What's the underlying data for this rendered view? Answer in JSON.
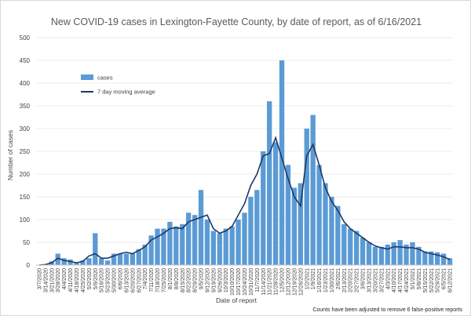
{
  "chart_data": {
    "type": "bar",
    "title": "New COVID-19 cases in Lexington-Fayette County, by date of report, as of 6/16/2021",
    "xlabel": "Date of report",
    "ylabel": "Number of cases",
    "ylim": [
      0,
      500
    ],
    "y_ticks": [
      "0",
      "50",
      "100",
      "150",
      "200",
      "250",
      "300",
      "350",
      "400",
      "450",
      "500"
    ],
    "x_tick_labels": [
      "3/7/2020",
      "3/14/2020",
      "3/21/2020",
      "3/28/2020",
      "4/4/2020",
      "4/11/2020",
      "4/18/2020",
      "4/25/2020",
      "5/2/2020",
      "5/9/2020",
      "5/16/2020",
      "5/23/2020",
      "5/30/2020",
      "6/6/2020",
      "6/13/2020",
      "6/20/2020",
      "6/27/2020",
      "7/4/2020",
      "7/11/2020",
      "7/18/2020",
      "7/25/2020",
      "8/1/2020",
      "8/8/2020",
      "8/15/2020",
      "8/22/2020",
      "8/29/2020",
      "9/5/2020",
      "9/12/2020",
      "9/19/2020",
      "9/26/2020",
      "10/3/2020",
      "10/10/2020",
      "10/17/2020",
      "10/24/2020",
      "10/31/2020",
      "11/7/2020",
      "11/14/2020",
      "11/21/2020",
      "11/28/2020",
      "12/5/2020",
      "12/12/2020",
      "12/19/2020",
      "12/26/2020",
      "1/2/2021",
      "1/9/2021",
      "1/16/2021",
      "1/23/2021",
      "1/30/2021",
      "2/6/2021",
      "2/13/2021",
      "2/20/2021",
      "2/27/2021",
      "3/6/2021",
      "3/13/2021",
      "3/20/2021",
      "3/27/2021",
      "4/3/2021",
      "4/10/2021",
      "4/17/2021",
      "4/24/2021",
      "5/1/2021",
      "5/8/2021",
      "5/15/2021",
      "5/22/2021",
      "5/29/2021",
      "6/5/2021",
      "6/12/2021"
    ],
    "legend": {
      "placement": "upper-left",
      "entries": [
        "cases",
        "7 day moving average"
      ]
    },
    "series": [
      {
        "name": "cases",
        "kind": "bar",
        "color": "#5b9bd5",
        "x": [
          "3/7/2020",
          "3/14/2020",
          "3/21/2020",
          "3/28/2020",
          "4/4/2020",
          "4/11/2020",
          "4/18/2020",
          "4/25/2020",
          "5/2/2020",
          "5/9/2020",
          "5/16/2020",
          "5/23/2020",
          "5/30/2020",
          "6/6/2020",
          "6/13/2020",
          "6/20/2020",
          "6/27/2020",
          "7/4/2020",
          "7/11/2020",
          "7/18/2020",
          "7/25/2020",
          "8/1/2020",
          "8/8/2020",
          "8/15/2020",
          "8/22/2020",
          "8/29/2020",
          "9/5/2020",
          "9/12/2020",
          "9/19/2020",
          "9/26/2020",
          "10/3/2020",
          "10/10/2020",
          "10/17/2020",
          "10/24/2020",
          "10/31/2020",
          "11/7/2020",
          "11/14/2020",
          "11/21/2020",
          "11/28/2020",
          "12/5/2020",
          "12/12/2020",
          "12/19/2020",
          "12/26/2020",
          "1/2/2021",
          "1/9/2021",
          "1/16/2021",
          "1/23/2021",
          "1/30/2021",
          "2/6/2021",
          "2/13/2021",
          "2/20/2021",
          "2/27/2021",
          "3/6/2021",
          "3/13/2021",
          "3/20/2021",
          "3/27/2021",
          "4/3/2021",
          "4/10/2021",
          "4/17/2021",
          "4/24/2021",
          "5/1/2021",
          "5/8/2021",
          "5/15/2021",
          "5/22/2021",
          "5/29/2021",
          "6/5/2021",
          "6/12/2021"
        ],
        "values": [
          0,
          2,
          8,
          25,
          15,
          12,
          5,
          10,
          15,
          70,
          15,
          10,
          25,
          25,
          25,
          25,
          35,
          45,
          65,
          80,
          80,
          95,
          85,
          90,
          115,
          110,
          165,
          100,
          75,
          70,
          80,
          85,
          100,
          115,
          150,
          165,
          250,
          360,
          270,
          450,
          220,
          170,
          180,
          300,
          330,
          220,
          180,
          150,
          130,
          90,
          80,
          75,
          60,
          50,
          40,
          40,
          45,
          50,
          55,
          45,
          50,
          40,
          30,
          30,
          28,
          25,
          15
        ]
      },
      {
        "name": "7 day moving average",
        "kind": "line",
        "color": "#1f3864",
        "x": [
          "3/7/2020",
          "3/14/2020",
          "3/21/2020",
          "3/28/2020",
          "4/4/2020",
          "4/11/2020",
          "4/18/2020",
          "4/25/2020",
          "5/2/2020",
          "5/9/2020",
          "5/16/2020",
          "5/23/2020",
          "5/30/2020",
          "6/6/2020",
          "6/13/2020",
          "6/20/2020",
          "6/27/2020",
          "7/4/2020",
          "7/11/2020",
          "7/18/2020",
          "7/25/2020",
          "8/1/2020",
          "8/8/2020",
          "8/15/2020",
          "8/22/2020",
          "8/29/2020",
          "9/5/2020",
          "9/12/2020",
          "9/19/2020",
          "9/26/2020",
          "10/3/2020",
          "10/10/2020",
          "10/17/2020",
          "10/24/2020",
          "10/31/2020",
          "11/7/2020",
          "11/14/2020",
          "11/21/2020",
          "11/28/2020",
          "12/5/2020",
          "12/12/2020",
          "12/19/2020",
          "12/26/2020",
          "1/2/2021",
          "1/9/2021",
          "1/16/2021",
          "1/23/2021",
          "1/30/2021",
          "2/6/2021",
          "2/13/2021",
          "2/20/2021",
          "2/27/2021",
          "3/6/2021",
          "3/13/2021",
          "3/20/2021",
          "3/27/2021",
          "4/3/2021",
          "4/10/2021",
          "4/17/2021",
          "4/24/2021",
          "5/1/2021",
          "5/8/2021",
          "5/15/2021",
          "5/22/2021",
          "5/29/2021",
          "6/5/2021",
          "6/12/2021"
        ],
        "values": [
          0,
          1,
          5,
          15,
          10,
          8,
          5,
          8,
          20,
          25,
          15,
          15,
          20,
          25,
          28,
          25,
          32,
          40,
          55,
          62,
          70,
          80,
          82,
          80,
          95,
          100,
          105,
          110,
          80,
          70,
          75,
          85,
          110,
          135,
          175,
          200,
          240,
          245,
          280,
          235,
          190,
          150,
          130,
          240,
          265,
          220,
          170,
          140,
          120,
          95,
          80,
          70,
          60,
          50,
          42,
          38,
          35,
          40,
          40,
          38,
          38,
          35,
          28,
          25,
          22,
          18,
          12
        ]
      }
    ],
    "annotations": [
      "Counts have been adjusted to remove 6 false-positive reports"
    ]
  }
}
